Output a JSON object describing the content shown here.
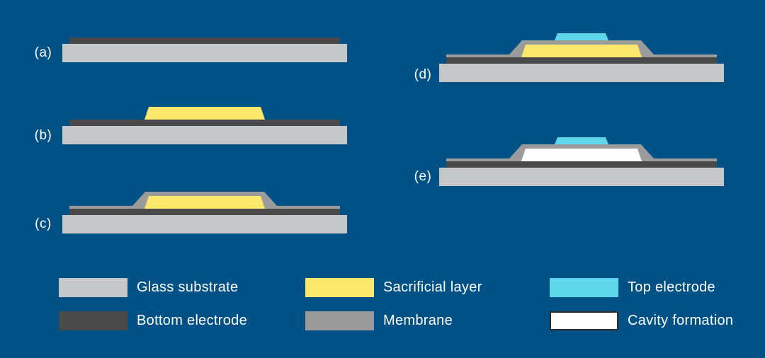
{
  "figure": {
    "background": "#005186",
    "text_color": "#ffffff",
    "colors": {
      "substrate": "#c6c7c8",
      "bottom_electrode": "#494949",
      "sacrificial": "#fbe76c",
      "membrane": "#9b9b9b",
      "top_electrode": "#5dd7e9",
      "cavity": "#ffffff"
    },
    "steps": [
      {
        "id": "a",
        "label": "(a)",
        "layers": [
          "substrate",
          "bottom_electrode"
        ]
      },
      {
        "id": "b",
        "label": "(b)",
        "layers": [
          "substrate",
          "bottom_electrode",
          "sacrificial"
        ]
      },
      {
        "id": "c",
        "label": "(c)",
        "layers": [
          "substrate",
          "bottom_electrode",
          "membrane",
          "sacrificial"
        ]
      },
      {
        "id": "d",
        "label": "(d)",
        "layers": [
          "substrate",
          "bottom_electrode",
          "membrane",
          "sacrificial",
          "top_electrode"
        ]
      },
      {
        "id": "e",
        "label": "(e)",
        "layers": [
          "substrate",
          "bottom_electrode",
          "membrane",
          "cavity",
          "top_electrode"
        ]
      }
    ],
    "legend": [
      {
        "id": "glass-substrate",
        "label": "Glass substrate",
        "color": "#c6c7c8",
        "border": ""
      },
      {
        "id": "bottom-electrode",
        "label": "Bottom electrode",
        "color": "#494949",
        "border": ""
      },
      {
        "id": "sacrificial-layer",
        "label": "Sacrificial layer",
        "color": "#fbe76c",
        "border": ""
      },
      {
        "id": "membrane",
        "label": "Membrane",
        "color": "#9b9b9b",
        "border": ""
      },
      {
        "id": "top-electrode",
        "label": "Top electrode",
        "color": "#5dd7e9",
        "border": ""
      },
      {
        "id": "cavity-formation",
        "label": "Cavity formation",
        "color": "#ffffff",
        "border": "#2d2d2d"
      }
    ]
  }
}
